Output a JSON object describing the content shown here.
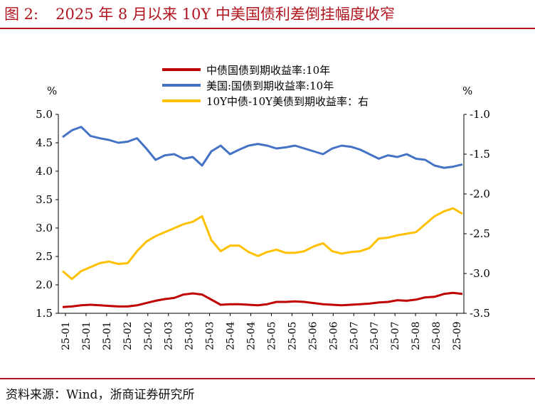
{
  "figure": {
    "label": "图 2:",
    "title": "2025 年 8 月以来 10Y 中美国债利差倒挂幅度收窄",
    "source": "资料来源：Wind，浙商证券研究所"
  },
  "colors": {
    "accent": "#b0141e",
    "cn": "#c00000",
    "us": "#4472c4",
    "spread": "#ffc000"
  },
  "chart_data": {
    "type": "line",
    "title": "2025 年 8 月以来 10Y 中美国债利差倒挂幅度收窄",
    "left_axis": {
      "unit": "%",
      "ylim": [
        1.5,
        5.0
      ],
      "ticks": [
        "1.5",
        "2.0",
        "2.5",
        "3.0",
        "3.5",
        "4.0",
        "4.5",
        "5.0"
      ]
    },
    "right_axis": {
      "unit": "%",
      "ylim": [
        -3.5,
        -1.0
      ],
      "ticks": [
        "-3.5",
        "-3.0",
        "-2.5",
        "-2.0",
        "-1.5",
        "-1.0"
      ]
    },
    "x_tick_labels": [
      "25-01",
      "25-01",
      "25-01",
      "25-02",
      "25-02",
      "25-03",
      "25-03",
      "25-03",
      "25-04",
      "25-04",
      "25-05",
      "25-05",
      "25-06",
      "25-06",
      "25-07",
      "25-07",
      "25-07",
      "25-08",
      "25-08",
      "25-09"
    ],
    "legend": {
      "position": "top-center"
    },
    "series": [
      {
        "name": "中债国债到期收益率:10年",
        "axis": "left",
        "color": "#c00000",
        "values": [
          1.61,
          1.62,
          1.64,
          1.65,
          1.64,
          1.63,
          1.62,
          1.62,
          1.64,
          1.68,
          1.72,
          1.75,
          1.77,
          1.83,
          1.85,
          1.83,
          1.74,
          1.65,
          1.66,
          1.66,
          1.65,
          1.64,
          1.66,
          1.7,
          1.7,
          1.71,
          1.7,
          1.68,
          1.66,
          1.65,
          1.64,
          1.65,
          1.66,
          1.67,
          1.69,
          1.7,
          1.73,
          1.72,
          1.74,
          1.78,
          1.79,
          1.84,
          1.86,
          1.84
        ]
      },
      {
        "name": "美国:国债到期收益率:10年",
        "axis": "left",
        "color": "#4472c4",
        "values": [
          4.6,
          4.72,
          4.78,
          4.62,
          4.58,
          4.55,
          4.5,
          4.52,
          4.58,
          4.4,
          4.2,
          4.28,
          4.3,
          4.22,
          4.25,
          4.1,
          4.35,
          4.45,
          4.3,
          4.38,
          4.45,
          4.48,
          4.45,
          4.4,
          4.42,
          4.45,
          4.4,
          4.35,
          4.3,
          4.4,
          4.45,
          4.43,
          4.38,
          4.3,
          4.22,
          4.28,
          4.25,
          4.3,
          4.22,
          4.2,
          4.1,
          4.06,
          4.08,
          4.12
        ]
      },
      {
        "name": "10Y中债-10Y美债到期收益率：右",
        "axis": "right",
        "color": "#ffc000",
        "values": [
          -2.97,
          -3.07,
          -2.97,
          -2.92,
          -2.87,
          -2.85,
          -2.88,
          -2.87,
          -2.72,
          -2.6,
          -2.53,
          -2.48,
          -2.43,
          -2.38,
          -2.35,
          -2.28,
          -2.58,
          -2.72,
          -2.65,
          -2.65,
          -2.73,
          -2.78,
          -2.73,
          -2.7,
          -2.74,
          -2.74,
          -2.72,
          -2.66,
          -2.62,
          -2.72,
          -2.75,
          -2.73,
          -2.72,
          -2.68,
          -2.56,
          -2.55,
          -2.52,
          -2.5,
          -2.48,
          -2.38,
          -2.28,
          -2.22,
          -2.18,
          -2.25
        ]
      }
    ]
  }
}
